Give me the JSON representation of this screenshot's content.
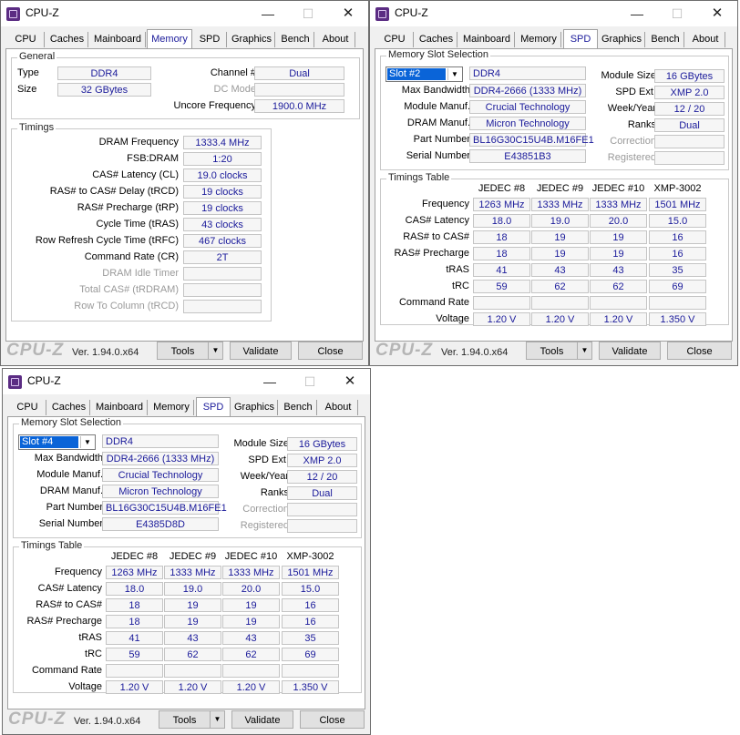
{
  "win1": {
    "title": "CPU-Z",
    "tabs": [
      "CPU",
      "Caches",
      "Mainboard",
      "Memory",
      "SPD",
      "Graphics",
      "Bench",
      "About"
    ],
    "general": {
      "title": "General",
      "type_label": "Type",
      "type_value": "DDR4",
      "size_label": "Size",
      "size_value": "32 GBytes",
      "channel_label": "Channel #",
      "channel_value": "Dual",
      "dcmode_label": "DC Mode",
      "dcmode_value": "",
      "uncore_label": "Uncore Frequency",
      "uncore_value": "1900.0 MHz"
    },
    "timings": {
      "title": "Timings",
      "rows": [
        {
          "label": "DRAM Frequency",
          "value": "1333.4 MHz"
        },
        {
          "label": "FSB:DRAM",
          "value": "1:20"
        },
        {
          "label": "CAS# Latency (CL)",
          "value": "19.0 clocks"
        },
        {
          "label": "RAS# to CAS# Delay (tRCD)",
          "value": "19 clocks"
        },
        {
          "label": "RAS# Precharge (tRP)",
          "value": "19 clocks"
        },
        {
          "label": "Cycle Time (tRAS)",
          "value": "43 clocks"
        },
        {
          "label": "Row Refresh Cycle Time (tRFC)",
          "value": "467 clocks"
        },
        {
          "label": "Command Rate (CR)",
          "value": "2T"
        },
        {
          "label": "DRAM Idle Timer",
          "value": ""
        },
        {
          "label": "Total CAS# (tRDRAM)",
          "value": ""
        },
        {
          "label": "Row To Column (tRCD)",
          "value": ""
        }
      ]
    },
    "footer": {
      "logo": "CPU-Z",
      "version": "Ver. 1.94.0.x64",
      "tools": "Tools",
      "validate": "Validate",
      "close": "Close"
    }
  },
  "win2": {
    "title": "CPU-Z",
    "tabs": [
      "CPU",
      "Caches",
      "Mainboard",
      "Memory",
      "SPD",
      "Graphics",
      "Bench",
      "About"
    ],
    "slot": {
      "group_title": "Memory Slot Selection",
      "selected": "Slot #2",
      "type_value": "DDR4",
      "module_size_label": "Module Size",
      "module_size_value": "16 GBytes",
      "max_bw_label": "Max Bandwidth",
      "max_bw_value": "DDR4-2666 (1333 MHz)",
      "spd_ext_label": "SPD Ext.",
      "spd_ext_value": "XMP 2.0",
      "module_manuf_label": "Module Manuf.",
      "module_manuf_value": "Crucial Technology",
      "week_year_label": "Week/Year",
      "week_year_value": "12 / 20",
      "dram_manuf_label": "DRAM Manuf.",
      "dram_manuf_value": "Micron Technology",
      "ranks_label": "Ranks",
      "ranks_value": "Dual",
      "part_label": "Part Number",
      "part_value": "BL16G30C15U4B.M16FE1",
      "correction_label": "Correction",
      "correction_value": "",
      "serial_label": "Serial Number",
      "serial_value": "E43851B3",
      "registered_label": "Registered",
      "registered_value": ""
    },
    "timings_table": {
      "title": "Timings Table",
      "columns": [
        "JEDEC #8",
        "JEDEC #9",
        "JEDEC #10",
        "XMP-3002"
      ],
      "rows": [
        {
          "label": "Frequency",
          "values": [
            "1263 MHz",
            "1333 MHz",
            "1333 MHz",
            "1501 MHz"
          ]
        },
        {
          "label": "CAS# Latency",
          "values": [
            "18.0",
            "19.0",
            "20.0",
            "15.0"
          ]
        },
        {
          "label": "RAS# to CAS#",
          "values": [
            "18",
            "19",
            "19",
            "16"
          ]
        },
        {
          "label": "RAS# Precharge",
          "values": [
            "18",
            "19",
            "19",
            "16"
          ]
        },
        {
          "label": "tRAS",
          "values": [
            "41",
            "43",
            "43",
            "35"
          ]
        },
        {
          "label": "tRC",
          "values": [
            "59",
            "62",
            "62",
            "69"
          ]
        },
        {
          "label": "Command Rate",
          "values": [
            "",
            "",
            "",
            ""
          ]
        },
        {
          "label": "Voltage",
          "values": [
            "1.20 V",
            "1.20 V",
            "1.20 V",
            "1.350 V"
          ]
        }
      ]
    },
    "footer": {
      "logo": "CPU-Z",
      "version": "Ver. 1.94.0.x64",
      "tools": "Tools",
      "validate": "Validate",
      "close": "Close"
    }
  },
  "win3": {
    "title": "CPU-Z",
    "tabs": [
      "CPU",
      "Caches",
      "Mainboard",
      "Memory",
      "SPD",
      "Graphics",
      "Bench",
      "About"
    ],
    "slot": {
      "group_title": "Memory Slot Selection",
      "selected": "Slot #4",
      "type_value": "DDR4",
      "module_size_label": "Module Size",
      "module_size_value": "16 GBytes",
      "max_bw_label": "Max Bandwidth",
      "max_bw_value": "DDR4-2666 (1333 MHz)",
      "spd_ext_label": "SPD Ext.",
      "spd_ext_value": "XMP 2.0",
      "module_manuf_label": "Module Manuf.",
      "module_manuf_value": "Crucial Technology",
      "week_year_label": "Week/Year",
      "week_year_value": "12 / 20",
      "dram_manuf_label": "DRAM Manuf.",
      "dram_manuf_value": "Micron Technology",
      "ranks_label": "Ranks",
      "ranks_value": "Dual",
      "part_label": "Part Number",
      "part_value": "BL16G30C15U4B.M16FE1",
      "correction_label": "Correction",
      "correction_value": "",
      "serial_label": "Serial Number",
      "serial_value": "E4385D8D",
      "registered_label": "Registered",
      "registered_value": ""
    },
    "timings_table": {
      "title": "Timings Table",
      "columns": [
        "JEDEC #8",
        "JEDEC #9",
        "JEDEC #10",
        "XMP-3002"
      ],
      "rows": [
        {
          "label": "Frequency",
          "values": [
            "1263 MHz",
            "1333 MHz",
            "1333 MHz",
            "1501 MHz"
          ]
        },
        {
          "label": "CAS# Latency",
          "values": [
            "18.0",
            "19.0",
            "20.0",
            "15.0"
          ]
        },
        {
          "label": "RAS# to CAS#",
          "values": [
            "18",
            "19",
            "19",
            "16"
          ]
        },
        {
          "label": "RAS# Precharge",
          "values": [
            "18",
            "19",
            "19",
            "16"
          ]
        },
        {
          "label": "tRAS",
          "values": [
            "41",
            "43",
            "43",
            "35"
          ]
        },
        {
          "label": "tRC",
          "values": [
            "59",
            "62",
            "62",
            "69"
          ]
        },
        {
          "label": "Command Rate",
          "values": [
            "",
            "",
            "",
            ""
          ]
        },
        {
          "label": "Voltage",
          "values": [
            "1.20 V",
            "1.20 V",
            "1.20 V",
            "1.350 V"
          ]
        }
      ]
    },
    "footer": {
      "logo": "CPU-Z",
      "version": "Ver. 1.94.0.x64",
      "tools": "Tools",
      "validate": "Validate",
      "close": "Close"
    }
  }
}
